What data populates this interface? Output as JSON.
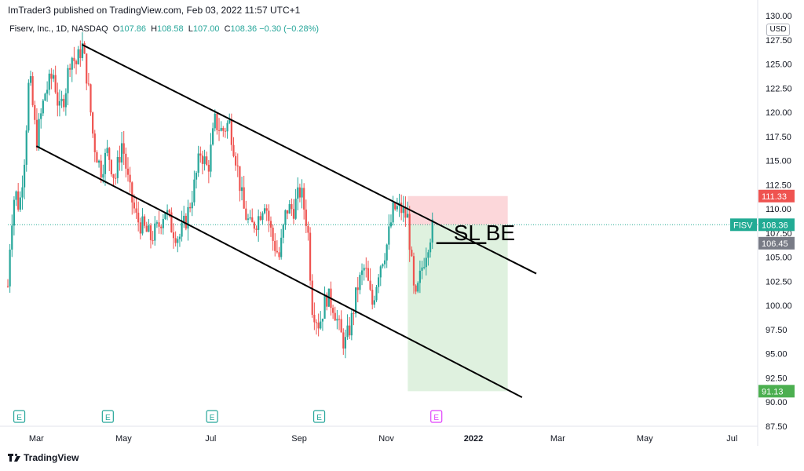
{
  "publisher": "ImTrader3 published on TradingView.com, Feb 03, 2022 11:57 UTC+1",
  "legend": {
    "symbol_line": "Fiserv, Inc., 1D, NASDAQ",
    "open_label": "O",
    "open": "107.86",
    "high_label": "H",
    "high": "108.58",
    "low_label": "L",
    "low": "107.00",
    "close_label": "C",
    "close": "108.36",
    "change": "−0.30 (−0.28%)"
  },
  "currency": "USD",
  "brand": "TradingView",
  "chart_data": {
    "type": "candlestick",
    "ticker": "FISV",
    "y_axis": {
      "min": 87.5,
      "max": 130,
      "ticks": [
        "130.00",
        "127.50",
        "125.00",
        "122.50",
        "120.00",
        "117.50",
        "115.00",
        "112.50",
        "110.00",
        "107.50",
        "105.00",
        "102.50",
        "100.00",
        "97.50",
        "95.00",
        "92.50",
        "90.00",
        "87.50"
      ]
    },
    "x_axis": {
      "labels": [
        {
          "text": "Mar",
          "d": 20
        },
        {
          "text": "May",
          "d": 81
        },
        {
          "text": "Jul",
          "d": 142
        },
        {
          "text": "Sep",
          "d": 204
        },
        {
          "text": "Nov",
          "d": 265
        },
        {
          "text": "2022",
          "d": 326
        },
        {
          "text": "Mar",
          "d": 385
        },
        {
          "text": "May",
          "d": 446
        },
        {
          "text": "Jul",
          "d": 507
        }
      ],
      "d_min": 0,
      "d_max": 525
    },
    "price_labels": [
      {
        "value": 111.33,
        "text": "111.33",
        "color": "#ef5350"
      },
      {
        "value": 108.36,
        "text": "108.36",
        "color": "#22ab94",
        "tag": "FISV"
      },
      {
        "value": 106.45,
        "text": "106.45",
        "color": "#787b86"
      },
      {
        "value": 91.13,
        "text": "91.13",
        "color": "#4caf50"
      }
    ],
    "current_price": 108.36,
    "anchors": [
      [
        0,
        102
      ],
      [
        2,
        108
      ],
      [
        5,
        112
      ],
      [
        8,
        110
      ],
      [
        12,
        116
      ],
      [
        15,
        124
      ],
      [
        20,
        117
      ],
      [
        26,
        122
      ],
      [
        32,
        124
      ],
      [
        36,
        120
      ],
      [
        40,
        122
      ],
      [
        44,
        126
      ],
      [
        48,
        125
      ],
      [
        52,
        127
      ],
      [
        56,
        123
      ],
      [
        60,
        117
      ],
      [
        65,
        114
      ],
      [
        70,
        116
      ],
      [
        75,
        113
      ],
      [
        80,
        117
      ],
      [
        85,
        112
      ],
      [
        90,
        109
      ],
      [
        95,
        108
      ],
      [
        100,
        107
      ],
      [
        105,
        108
      ],
      [
        110,
        110
      ],
      [
        115,
        108
      ],
      [
        120,
        107
      ],
      [
        125,
        109
      ],
      [
        130,
        112
      ],
      [
        135,
        116
      ],
      [
        140,
        114
      ],
      [
        145,
        119
      ],
      [
        150,
        118
      ],
      [
        155,
        119
      ],
      [
        160,
        115
      ],
      [
        165,
        110
      ],
      [
        170,
        108
      ],
      [
        175,
        109
      ],
      [
        180,
        111
      ],
      [
        185,
        107
      ],
      [
        190,
        105
      ],
      [
        195,
        110
      ],
      [
        200,
        110
      ],
      [
        205,
        112
      ],
      [
        210,
        108
      ],
      [
        213,
        100
      ],
      [
        218,
        98
      ],
      [
        223,
        101
      ],
      [
        228,
        100
      ],
      [
        233,
        97
      ],
      [
        236,
        96
      ],
      [
        240,
        98
      ],
      [
        245,
        102
      ],
      [
        250,
        104
      ],
      [
        255,
        100
      ],
      [
        260,
        104
      ],
      [
        265,
        106
      ],
      [
        270,
        110
      ],
      [
        275,
        110
      ],
      [
        280,
        109
      ],
      [
        285,
        100
      ],
      [
        290,
        104
      ],
      [
        295,
        107
      ],
      [
        298,
        108.36
      ]
    ],
    "channel_upper": {
      "d1": 52,
      "p1": 127,
      "d2": 370,
      "p2": 103.3
    },
    "channel_lower": {
      "d1": 20,
      "p1": 116.5,
      "d2": 360,
      "p2": 90.5
    },
    "position": {
      "entry": 108.36,
      "stop": 111.33,
      "target": 91.13,
      "d1": 280,
      "d2": 350
    },
    "sl_line": {
      "price": 106.45,
      "d1": 300,
      "d2": 335
    },
    "annotation": "SL BE",
    "earnings": [
      {
        "d": 8,
        "color": "#26a69a"
      },
      {
        "d": 70,
        "color": "#26a69a"
      },
      {
        "d": 143,
        "color": "#26a69a"
      },
      {
        "d": 218,
        "color": "#26a69a"
      },
      {
        "d": 300,
        "color": "#e040fb"
      }
    ],
    "earnings_label": "E"
  }
}
